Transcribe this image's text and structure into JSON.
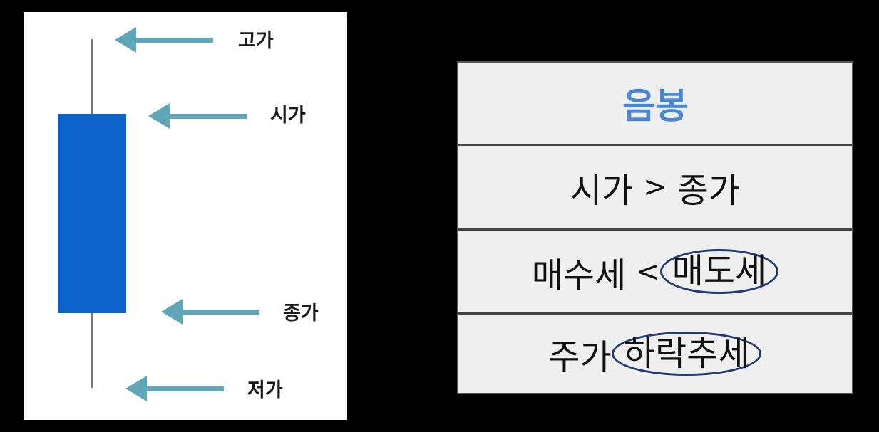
{
  "candle": {
    "labels": {
      "high": "고가",
      "open": "시가",
      "close": "종가",
      "low": "저가"
    },
    "colors": {
      "body": "#0b63c8",
      "wick": "#777777",
      "arrow": "#5fa7b8"
    }
  },
  "table": {
    "title": "음봉",
    "row1": {
      "left": "시가",
      "op": ">",
      "right": "종가"
    },
    "row2": {
      "left": "매수세",
      "op": "<",
      "circled": "매도세"
    },
    "row3": {
      "prefix": "주가",
      "circled": "하락추세"
    },
    "colors": {
      "title": "#4a86d6",
      "circle": "#1f3b73",
      "background": "#efefef"
    }
  }
}
